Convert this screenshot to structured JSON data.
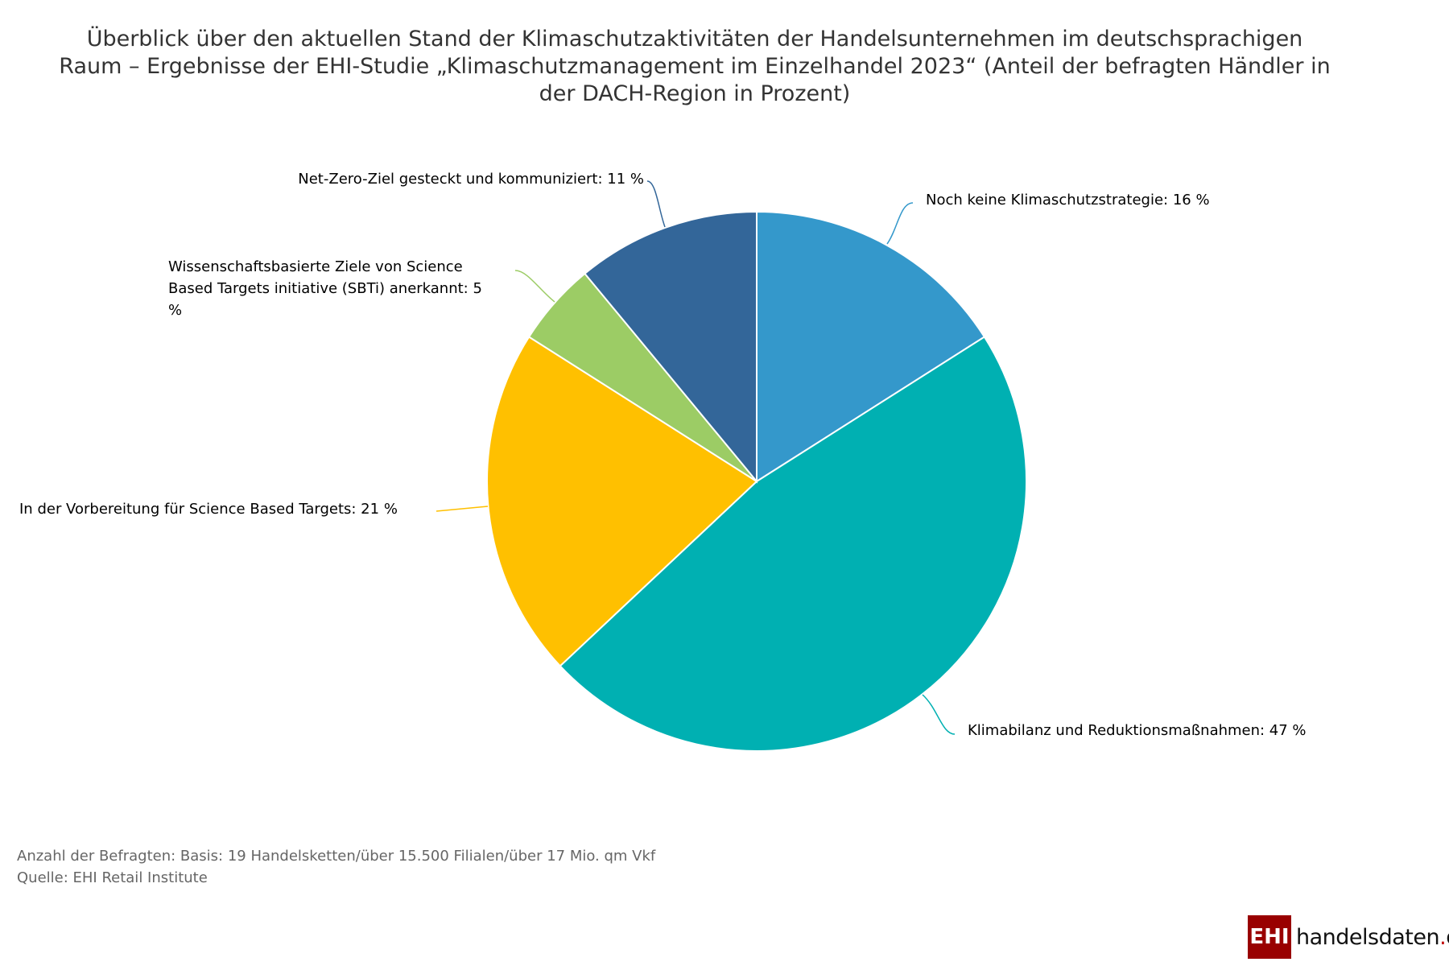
{
  "chart_data": {
    "type": "pie",
    "title_lines": [
      "Überblick über den aktuellen Stand der Klimaschutzaktivitäten der Handelsunternehmen im deutschsprachigen",
      "Raum – Ergebnisse der EHI-Studie „Klimaschutzmanagement im Einzelhandel 2023“ (Anteil der befragten Händler in",
      "der DACH-Region in Prozent)"
    ],
    "slices": [
      {
        "label": "Noch keine Klimaschutzstrategie: 16 %",
        "value": 16,
        "color": "#3498cb"
      },
      {
        "label": "Klimabilanz und Reduktionsmaßnahmen: 47 %",
        "value": 47,
        "color": "#00b0b2"
      },
      {
        "label": "In der Vorbereitung für Science Based Targets: 21 %",
        "value": 21,
        "color": "#ffc000"
      },
      {
        "label_lines": [
          "Wissenschaftsbasierte Ziele von Science",
          "Based Targets initiative (SBTi) anerkannt: 5",
          "%"
        ],
        "value": 5,
        "color": "#9ccc65"
      },
      {
        "label": "Net-Zero-Ziel gesteckt und kommuniziert: 11 %",
        "value": 11,
        "color": "#336699"
      }
    ],
    "start": "top",
    "direction": "clockwise"
  },
  "footer": {
    "basis": "Anzahl der Befragten: Basis: 19 Handelsketten/über 15.500 Filialen/über 17 Mio. qm Vkf",
    "source": "Quelle: EHI Retail Institute"
  },
  "logo": {
    "box": "EHI",
    "text": "handelsdaten",
    "dot": ".",
    "tld": "de"
  }
}
